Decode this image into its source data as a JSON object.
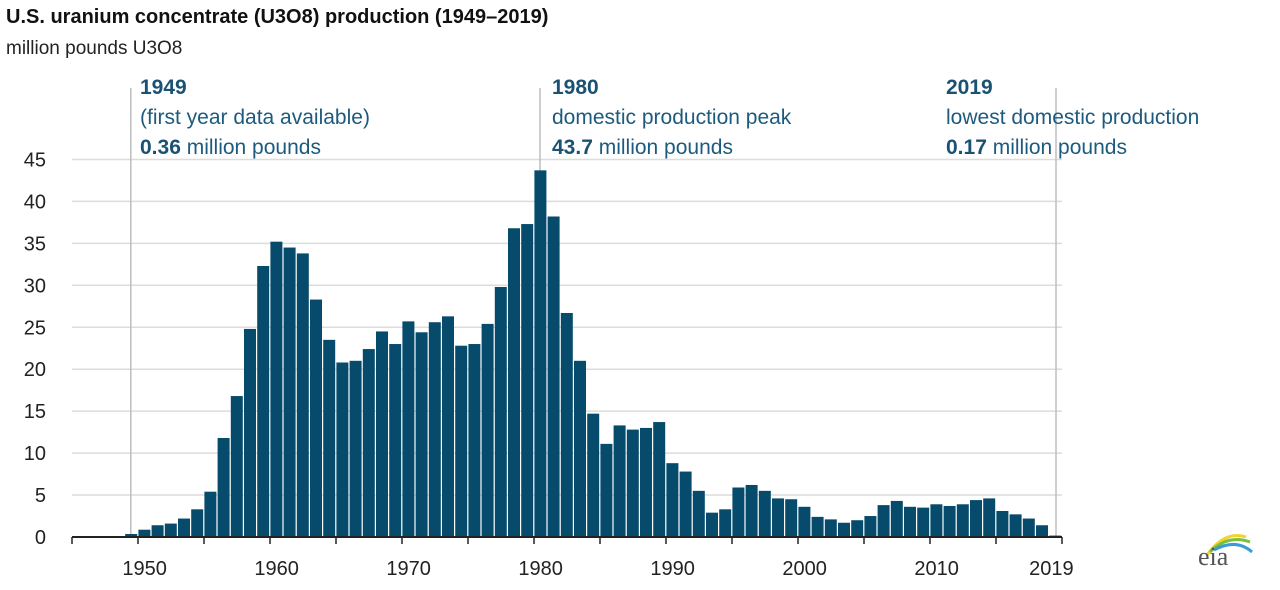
{
  "chart_data": {
    "type": "bar",
    "title": "U.S. uranium concentrate (U3O8) production (1949–2019)",
    "subtitle": "million pounds U3O8",
    "ylim": [
      0,
      45
    ],
    "yticks": [
      0,
      5,
      10,
      15,
      20,
      25,
      30,
      35,
      40,
      45
    ],
    "xtick_labels": [
      "1950",
      "1960",
      "1970",
      "1980",
      "1990",
      "2000",
      "2010",
      "2019"
    ],
    "grid": "horizontal",
    "bar_color": "#064b6c",
    "categories": [
      1949,
      1950,
      1951,
      1952,
      1953,
      1954,
      1955,
      1956,
      1957,
      1958,
      1959,
      1960,
      1961,
      1962,
      1963,
      1964,
      1965,
      1966,
      1967,
      1968,
      1969,
      1970,
      1971,
      1972,
      1973,
      1974,
      1975,
      1976,
      1977,
      1978,
      1979,
      1980,
      1981,
      1982,
      1983,
      1984,
      1985,
      1986,
      1987,
      1988,
      1989,
      1990,
      1991,
      1992,
      1993,
      1994,
      1995,
      1996,
      1997,
      1998,
      1999,
      2000,
      2001,
      2002,
      2003,
      2004,
      2005,
      2006,
      2007,
      2008,
      2009,
      2010,
      2011,
      2012,
      2013,
      2014,
      2015,
      2016,
      2017,
      2018,
      2019
    ],
    "values": [
      0.36,
      0.87,
      1.4,
      1.6,
      2.2,
      3.3,
      5.4,
      11.8,
      16.8,
      24.8,
      32.3,
      35.2,
      34.5,
      33.8,
      28.3,
      23.5,
      20.8,
      21.0,
      22.4,
      24.5,
      23.0,
      25.7,
      24.4,
      25.6,
      26.3,
      22.8,
      23.0,
      25.4,
      29.8,
      36.8,
      37.3,
      43.7,
      38.2,
      26.7,
      21.0,
      14.7,
      11.1,
      13.3,
      12.8,
      13.0,
      13.7,
      8.8,
      7.8,
      5.5,
      2.9,
      3.3,
      5.9,
      6.2,
      5.5,
      4.6,
      4.5,
      3.6,
      2.4,
      2.1,
      1.7,
      2.0,
      2.5,
      3.8,
      4.3,
      3.6,
      3.5,
      3.9,
      3.7,
      3.9,
      4.4,
      4.6,
      3.1,
      2.7,
      2.2,
      1.4,
      0.17
    ],
    "annotations": [
      {
        "year": "1949",
        "line1": "(first year data available)",
        "value": "0.36",
        "unit": " million pounds"
      },
      {
        "year": "1980",
        "line1": "domestic production peak",
        "value": "43.7",
        "unit": " million pounds"
      },
      {
        "year": "2019",
        "line1": "lowest domestic production",
        "value": "0.17",
        "unit": " million pounds"
      }
    ]
  },
  "logo": "eia"
}
